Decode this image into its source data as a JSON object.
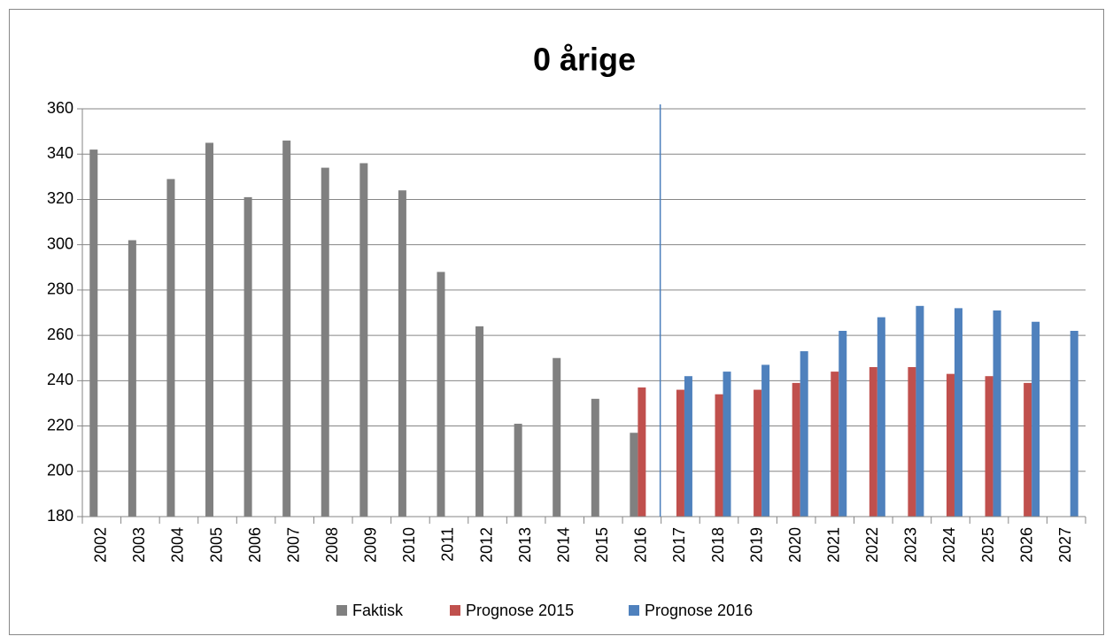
{
  "chart_data": {
    "type": "bar",
    "title": "0 årige",
    "categories": [
      "2002",
      "2003",
      "2004",
      "2005",
      "2006",
      "2007",
      "2008",
      "2009",
      "2010",
      "2011",
      "2012",
      "2013",
      "2014",
      "2015",
      "2016",
      "2017",
      "2018",
      "2019",
      "2020",
      "2021",
      "2022",
      "2023",
      "2024",
      "2025",
      "2026",
      "2027"
    ],
    "series": [
      {
        "name": "Faktisk",
        "color": "#808080",
        "values": [
          342,
          302,
          329,
          345,
          321,
          346,
          334,
          336,
          324,
          288,
          264,
          221,
          250,
          232,
          217,
          null,
          null,
          null,
          null,
          null,
          null,
          null,
          null,
          null,
          null,
          null
        ]
      },
      {
        "name": "Prognose 2015",
        "color": "#c0504d",
        "values": [
          null,
          null,
          null,
          null,
          null,
          null,
          null,
          null,
          null,
          null,
          null,
          null,
          null,
          null,
          237,
          236,
          234,
          236,
          239,
          244,
          246,
          246,
          243,
          242,
          239,
          null
        ]
      },
      {
        "name": "Prognose 2016",
        "color": "#4f81bd",
        "values": [
          null,
          null,
          null,
          null,
          null,
          null,
          null,
          null,
          null,
          null,
          null,
          null,
          null,
          null,
          null,
          242,
          244,
          247,
          253,
          262,
          268,
          273,
          272,
          271,
          266,
          262
        ]
      }
    ],
    "ylim": [
      180,
      360
    ],
    "yticks": [
      180,
      200,
      220,
      240,
      260,
      280,
      300,
      320,
      340,
      360
    ],
    "grid": true,
    "legend": "bottom"
  }
}
